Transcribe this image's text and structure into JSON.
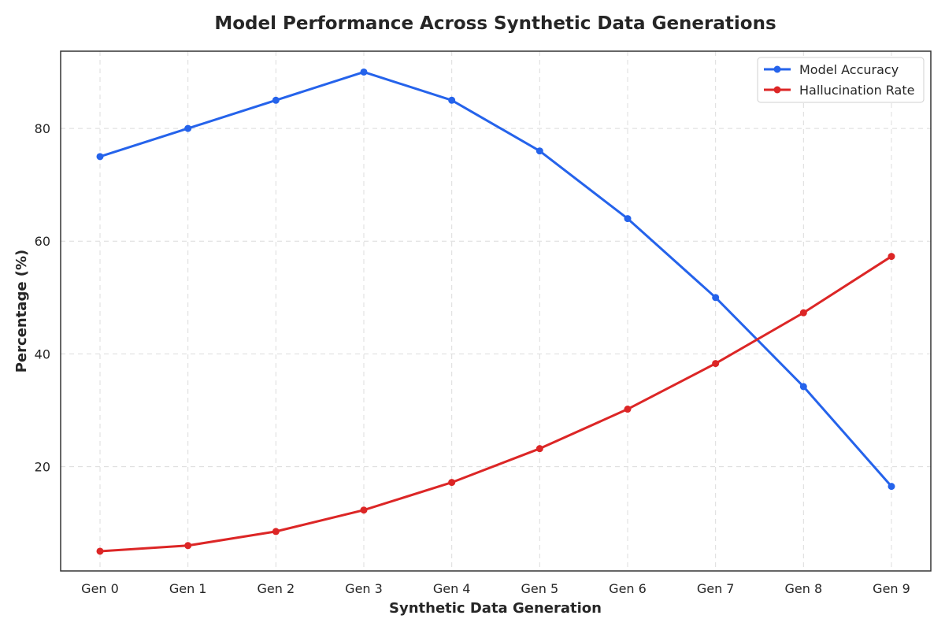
{
  "chart_data": {
    "type": "line",
    "title": "Model Performance Across Synthetic Data Generations",
    "xlabel": "Synthetic Data Generation",
    "ylabel": "Percentage (%)",
    "categories": [
      "Gen 0",
      "Gen 1",
      "Gen 2",
      "Gen 3",
      "Gen 4",
      "Gen 5",
      "Gen 6",
      "Gen 7",
      "Gen 8",
      "Gen 9"
    ],
    "ylim": [
      1.5,
      93.7
    ],
    "yticks": [
      20,
      40,
      60,
      80
    ],
    "grid": true,
    "legend_position": "top-right",
    "series": [
      {
        "name": "Model Accuracy",
        "color": "#2563eb",
        "values": [
          75,
          80,
          85,
          90,
          85,
          76,
          64,
          50,
          34.2,
          16.5
        ]
      },
      {
        "name": "Hallucination Rate",
        "color": "#dc2626",
        "values": [
          5,
          6,
          8.5,
          12.3,
          17.2,
          23.2,
          30.2,
          38.3,
          47.3,
          57.3
        ]
      }
    ]
  }
}
